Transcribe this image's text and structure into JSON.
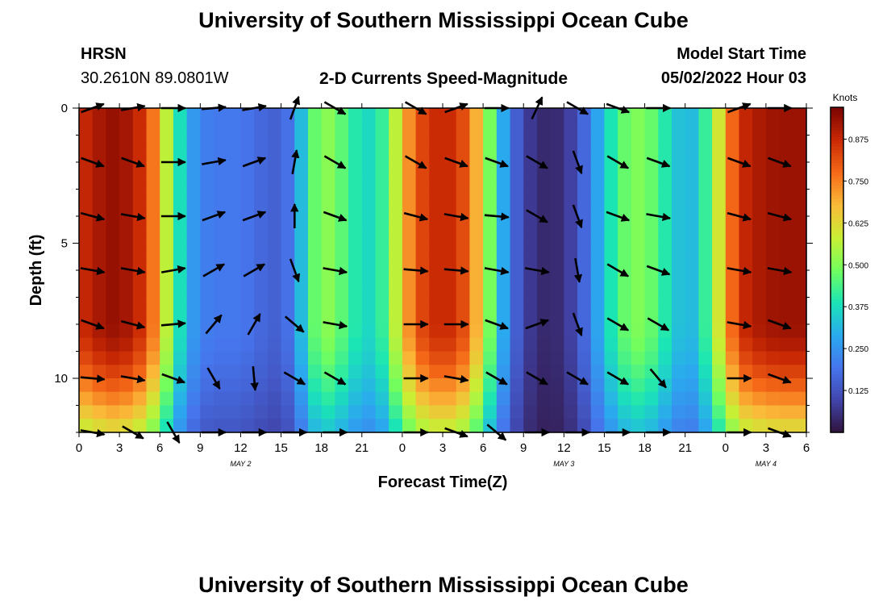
{
  "page": {
    "title": "University of Southern Mississippi Ocean Cube",
    "footer_title": "University of Southern Mississippi Ocean Cube",
    "station": "HRSN",
    "coords": "30.2610N  89.0801W",
    "plot_title": "2-D Currents Speed-Magnitude",
    "model_start_label": "Model Start Time",
    "model_start_value": "05/02/2022 Hour 03"
  },
  "chart_data": {
    "type": "heatmap",
    "title": "2-D Currents Speed-Magnitude",
    "xlabel": "Forecast Time(Z)",
    "ylabel": "Depth (ft)",
    "x_ticks": [
      "0",
      "3",
      "6",
      "9",
      "12",
      "15",
      "18",
      "21",
      "0",
      "3",
      "6",
      "9",
      "12",
      "15",
      "18",
      "21",
      "0",
      "3",
      "6"
    ],
    "x_hours": [
      0,
      3,
      6,
      9,
      12,
      15,
      18,
      21,
      24,
      27,
      30,
      33,
      36,
      39,
      42,
      45,
      48,
      51,
      54
    ],
    "day_labels": [
      {
        "text": "MAY 2",
        "hour": 12
      },
      {
        "text": "MAY 3",
        "hour": 36
      },
      {
        "text": "MAY 4",
        "hour": 51
      }
    ],
    "y_ticks": [
      "0",
      "5",
      "10"
    ],
    "y_values": [
      0,
      5,
      10
    ],
    "xlim": [
      0,
      54
    ],
    "ylim": [
      0,
      12
    ],
    "colorbar": {
      "label": "Knots",
      "ticks": [
        "0.125",
        "0.250",
        "0.375",
        "0.500",
        "0.625",
        "0.750",
        "0.875"
      ],
      "tick_values": [
        0.125,
        0.25,
        0.375,
        0.5,
        0.625,
        0.75,
        0.875
      ],
      "range": [
        0,
        0.97
      ]
    },
    "speed_profile": {
      "hours": [
        0,
        1,
        2,
        3,
        4,
        5,
        6,
        7,
        8,
        9,
        10,
        11,
        12,
        13,
        14,
        15,
        16,
        17,
        18,
        19,
        20,
        21,
        22,
        23,
        24,
        25,
        26,
        27,
        28,
        29,
        30,
        31,
        32,
        33,
        34,
        35,
        36,
        37,
        38,
        39,
        40,
        41,
        42,
        43,
        44,
        45,
        46,
        47,
        48,
        49,
        50,
        51,
        52,
        53,
        54
      ],
      "knots": [
        0.86,
        0.9,
        0.93,
        0.94,
        0.9,
        0.84,
        0.68,
        0.46,
        0.3,
        0.22,
        0.2,
        0.2,
        0.2,
        0.18,
        0.16,
        0.15,
        0.22,
        0.42,
        0.52,
        0.5,
        0.42,
        0.38,
        0.36,
        0.48,
        0.66,
        0.8,
        0.86,
        0.88,
        0.86,
        0.78,
        0.6,
        0.38,
        0.2,
        0.1,
        0.05,
        0.04,
        0.06,
        0.12,
        0.22,
        0.34,
        0.44,
        0.5,
        0.5,
        0.44,
        0.36,
        0.3,
        0.34,
        0.5,
        0.7,
        0.86,
        0.9,
        0.92,
        0.93,
        0.93,
        0.93
      ]
    },
    "vector_rows_depth_ft": [
      0,
      2,
      4,
      6,
      8,
      10,
      12
    ],
    "vector_cols_hours": [
      1,
      4,
      7,
      10,
      13,
      16,
      19,
      25,
      28,
      31,
      34,
      37,
      40,
      43,
      49,
      52
    ],
    "vector_directions_deg": [
      [
        -20,
        -10,
        0,
        -5,
        -10,
        -70,
        30,
        30,
        -20,
        0,
        -65,
        30,
        20,
        0,
        -20,
        0
      ],
      [
        20,
        20,
        0,
        -10,
        -20,
        -80,
        30,
        30,
        20,
        20,
        30,
        70,
        30,
        20,
        20,
        20
      ],
      [
        15,
        10,
        0,
        -20,
        -20,
        -90,
        20,
        15,
        10,
        5,
        30,
        70,
        20,
        10,
        15,
        15
      ],
      [
        10,
        10,
        -10,
        -30,
        -30,
        70,
        10,
        5,
        5,
        10,
        10,
        80,
        30,
        20,
        10,
        10
      ],
      [
        20,
        15,
        -5,
        -50,
        -60,
        40,
        10,
        0,
        0,
        20,
        -20,
        70,
        30,
        30,
        10,
        20
      ],
      [
        5,
        10,
        20,
        60,
        85,
        30,
        30,
        0,
        10,
        30,
        30,
        30,
        30,
        50,
        0,
        20
      ],
      [
        10,
        30,
        60,
        0,
        0,
        0,
        0,
        0,
        20,
        40,
        0,
        0,
        0,
        0,
        0,
        20
      ]
    ]
  }
}
